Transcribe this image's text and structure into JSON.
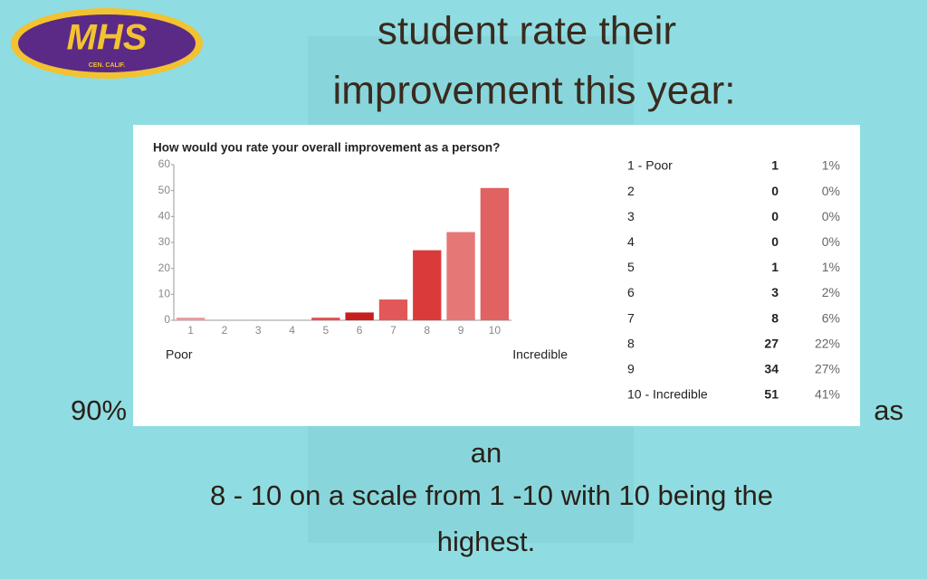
{
  "slide": {
    "title_lines": [
      "student rate their",
      "improvement this year:"
    ],
    "logo": {
      "text": "MHS",
      "subtext": "CEN. CALIF."
    },
    "caption": {
      "left": "90%",
      "right": "as",
      "lines": [
        "an",
        "8 - 10 on a scale from 1 -10 with 10 being the",
        "highest."
      ]
    }
  },
  "chart_data": {
    "type": "bar",
    "title": "How would you rate your overall improvement as a person?",
    "categories": [
      "1",
      "2",
      "3",
      "4",
      "5",
      "6",
      "7",
      "8",
      "9",
      "10"
    ],
    "values": [
      1,
      0,
      0,
      0,
      1,
      3,
      8,
      27,
      34,
      51
    ],
    "colors": [
      "#eb9a9a",
      "#e06a6a",
      "#e06a6a",
      "#e06a6a",
      "#e05050",
      "#c81e1e",
      "#e25858",
      "#db3a3a",
      "#e57777",
      "#e06262"
    ],
    "ylim": [
      0,
      60
    ],
    "yticks": [
      0,
      10,
      20,
      30,
      40,
      50,
      60
    ],
    "x_end_labels": [
      "Poor",
      "Incredible"
    ]
  },
  "table": {
    "rows": [
      {
        "label": "1 -   Poor",
        "percent": "1%"
      },
      {
        "label": "2",
        "percent": "0%"
      },
      {
        "label": "3",
        "percent": "0%"
      },
      {
        "label": "4",
        "percent": "0%"
      },
      {
        "label": "5",
        "percent": "1%"
      },
      {
        "label": "6",
        "percent": "2%"
      },
      {
        "label": "7",
        "percent": "6%"
      },
      {
        "label": "8",
        "percent": "22%"
      },
      {
        "label": "9",
        "percent": "27%"
      },
      {
        "label": "10 - Incredible",
        "percent": "41%"
      }
    ]
  }
}
